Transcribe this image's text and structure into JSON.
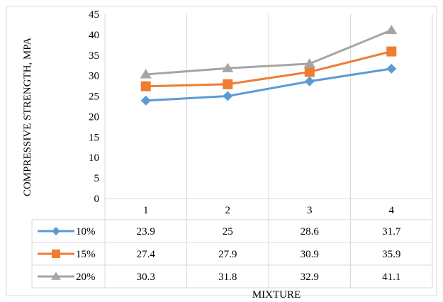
{
  "chart_data": {
    "type": "line",
    "title": "",
    "ylabel": "COMPRESSIVE STRENGTH, MPA",
    "xlabel": "MIXTURE",
    "categories": [
      "1",
      "2",
      "3",
      "4"
    ],
    "ylim": [
      0,
      45
    ],
    "yticks": [
      0,
      5,
      10,
      15,
      20,
      25,
      30,
      35,
      40,
      45
    ],
    "y_tick_labels": [
      "0",
      "5",
      "10",
      "15",
      "20",
      "25",
      "30",
      "35",
      "40",
      "45"
    ],
    "grid": "vertical",
    "legend": "data-table",
    "series": [
      {
        "name": "10%",
        "values": [
          23.9,
          25,
          28.6,
          31.7
        ],
        "value_labels": [
          "23.9",
          "25",
          "28.6",
          "31.7"
        ],
        "color": "#5B9BD5",
        "marker": "diamond"
      },
      {
        "name": "15%",
        "values": [
          27.4,
          27.9,
          30.9,
          35.9
        ],
        "value_labels": [
          "27.4",
          "27.9",
          "30.9",
          "35.9"
        ],
        "color": "#ED7D31",
        "marker": "square"
      },
      {
        "name": "20%",
        "values": [
          30.3,
          31.8,
          32.9,
          41.1
        ],
        "value_labels": [
          "30.3",
          "31.8",
          "32.9",
          "41.1"
        ],
        "color": "#A5A5A5",
        "marker": "triangle"
      }
    ]
  }
}
